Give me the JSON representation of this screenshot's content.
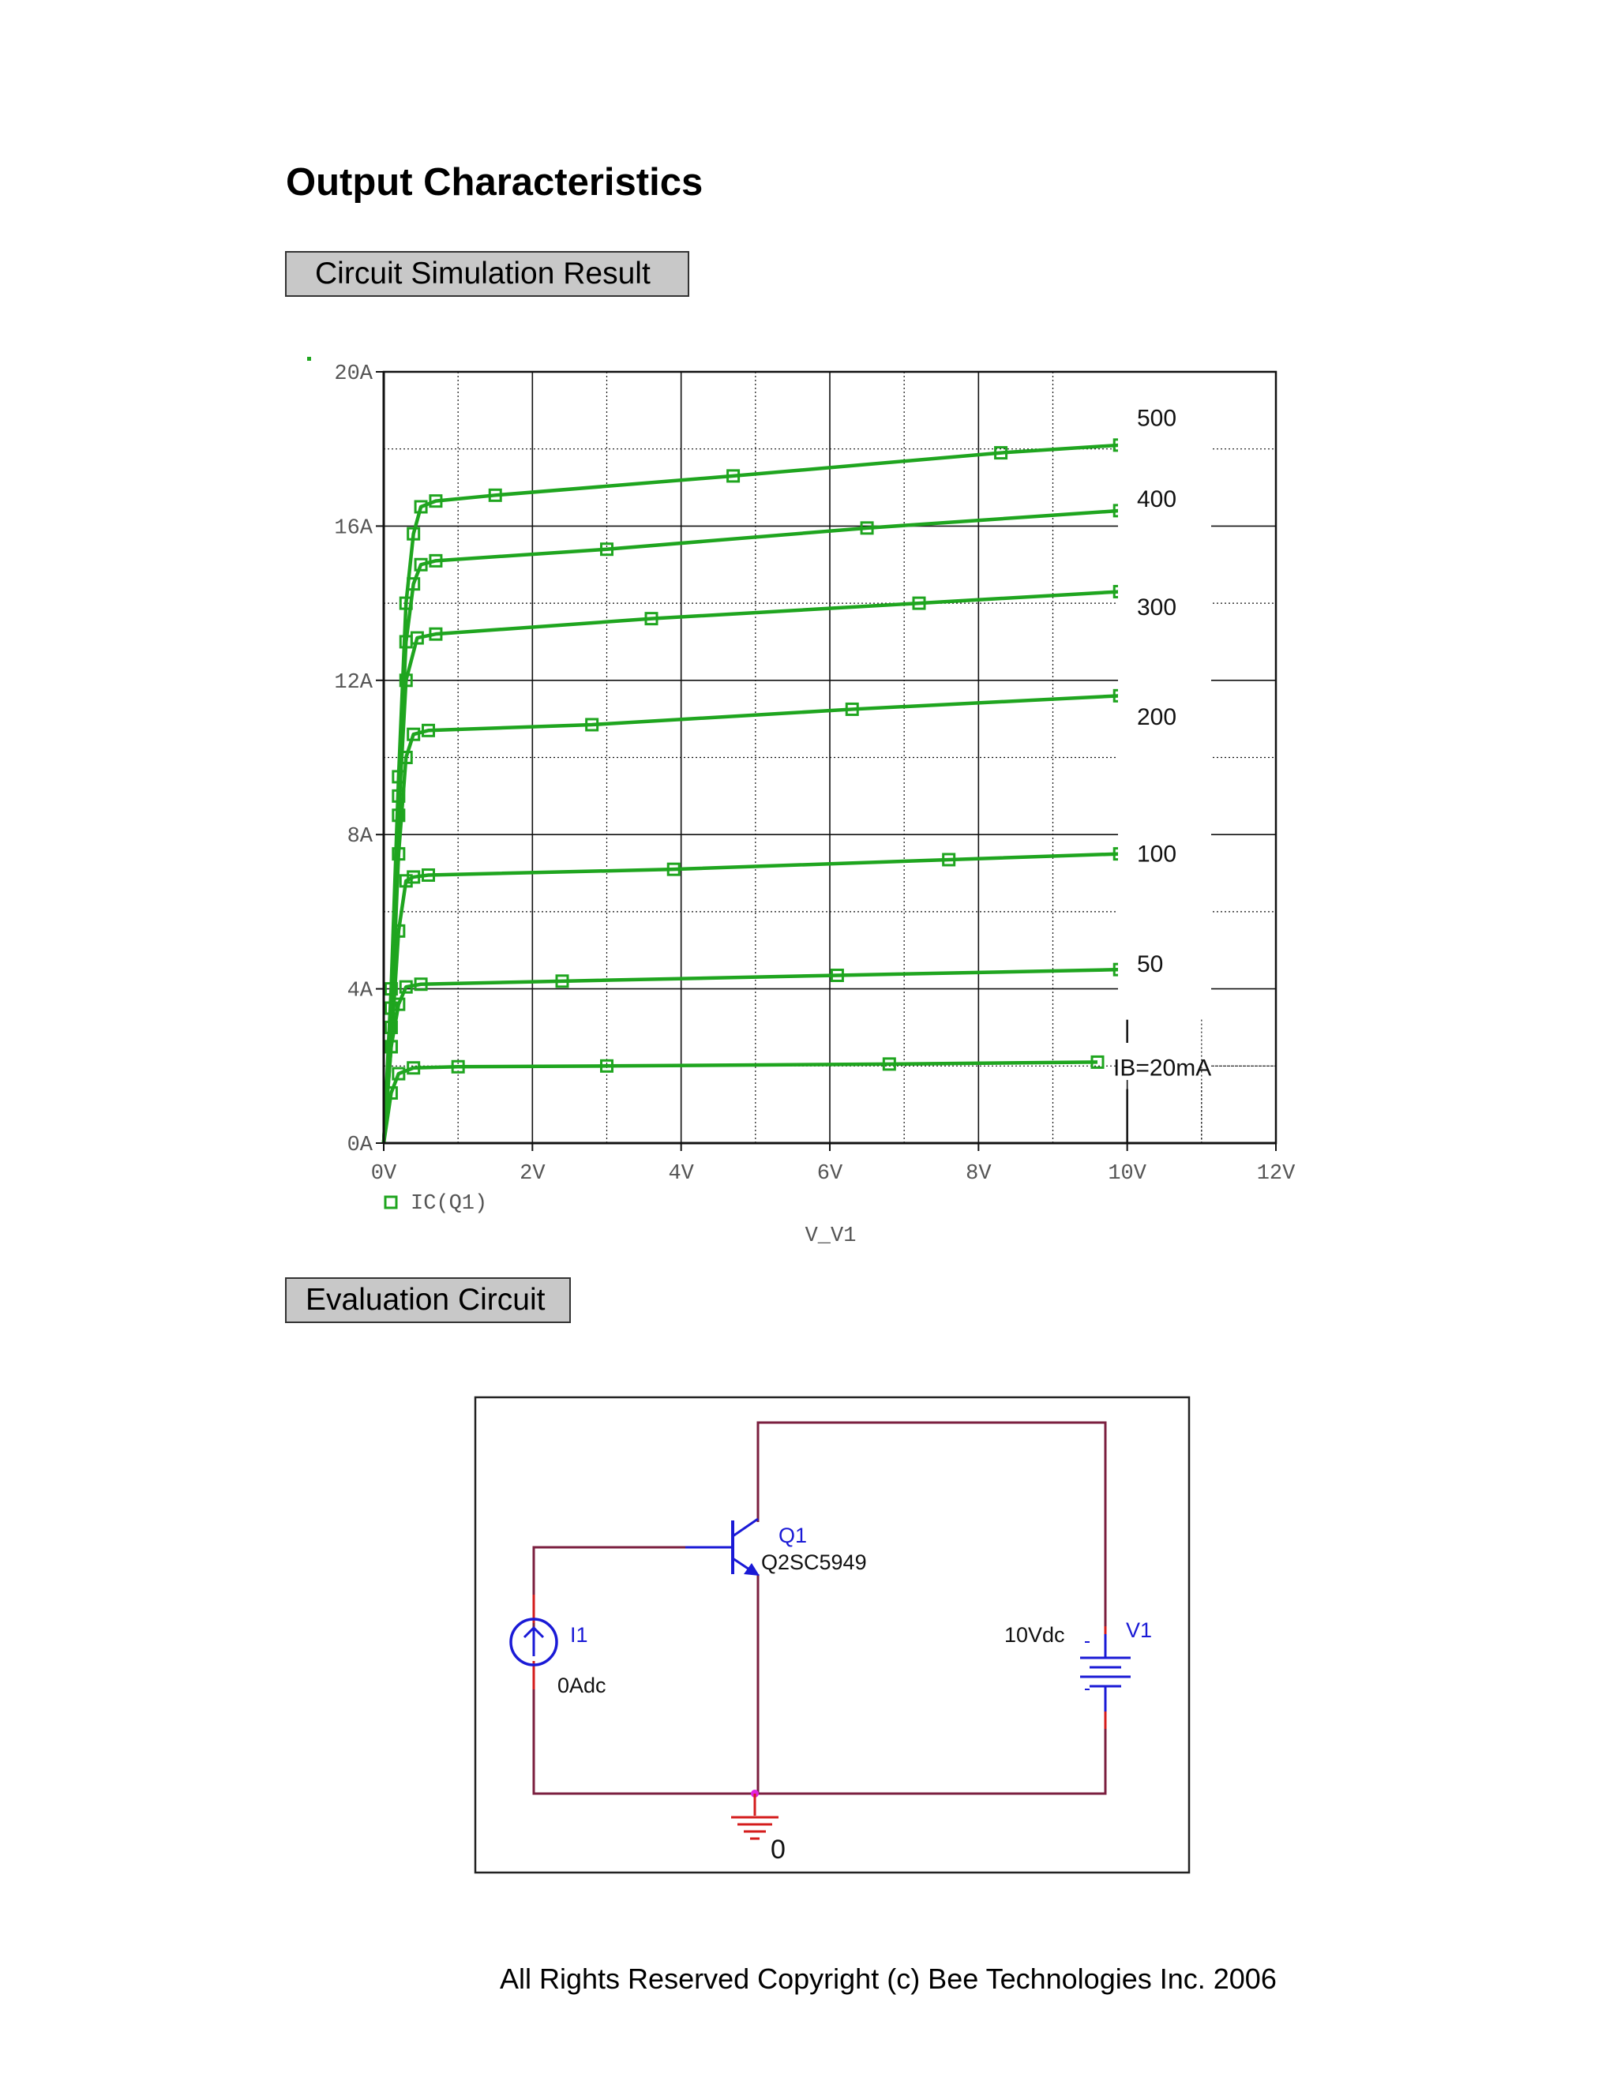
{
  "page": {
    "title": "Output Characteristics",
    "section_simulation": "Circuit Simulation Result",
    "section_evaluation": "Evaluation Circuit",
    "copyright": "All Rights Reserved Copyright (c) Bee Technologies Inc. 2006"
  },
  "chart_data": {
    "type": "line",
    "xlabel": "V_V1",
    "ylabel": "",
    "xlim": [
      0,
      12
    ],
    "ylim": [
      0,
      20
    ],
    "x_ticks": [
      "0V",
      "2V",
      "4V",
      "6V",
      "8V",
      "10V",
      "12V"
    ],
    "y_ticks": [
      "0A",
      "4A",
      "8A",
      "12A",
      "16A",
      "20A"
    ],
    "grid": true,
    "legend": {
      "label": "IC(Q1)",
      "position": "bottom-left"
    },
    "color": "#1fa51f",
    "series": [
      {
        "name": "IB=20mA",
        "x": [
          0,
          0.1,
          0.2,
          0.4,
          1,
          3,
          6.8,
          9.6
        ],
        "values": [
          0,
          1.3,
          1.8,
          1.95,
          1.98,
          2.0,
          2.05,
          2.1
        ]
      },
      {
        "name": "50",
        "x": [
          0,
          0.1,
          0.2,
          0.3,
          0.5,
          2.4,
          6.1,
          9.9
        ],
        "values": [
          0,
          2.5,
          3.6,
          4.05,
          4.12,
          4.2,
          4.35,
          4.5
        ]
      },
      {
        "name": "100",
        "x": [
          0,
          0.1,
          0.2,
          0.3,
          0.4,
          0.6,
          3.9,
          7.6,
          9.9
        ],
        "values": [
          0,
          2.5,
          5.5,
          6.8,
          6.9,
          6.95,
          7.1,
          7.35,
          7.5
        ]
      },
      {
        "name": "200",
        "x": [
          0,
          0.1,
          0.2,
          0.3,
          0.4,
          0.6,
          2.8,
          6.3,
          9.9
        ],
        "values": [
          0,
          3,
          7.5,
          10.0,
          10.6,
          10.7,
          10.85,
          11.25,
          11.6
        ]
      },
      {
        "name": "300",
        "x": [
          0,
          0.1,
          0.2,
          0.3,
          0.45,
          0.7,
          3.6,
          7.2,
          9.9
        ],
        "values": [
          0,
          3.5,
          8.5,
          12.0,
          13.1,
          13.2,
          13.6,
          14.0,
          14.3
        ]
      },
      {
        "name": "400",
        "x": [
          0,
          0.1,
          0.2,
          0.3,
          0.4,
          0.5,
          0.7,
          3.0,
          6.5,
          9.9
        ],
        "values": [
          0,
          3.5,
          9,
          13.0,
          14.5,
          15.0,
          15.1,
          15.4,
          15.95,
          16.4
        ]
      },
      {
        "name": "500",
        "x": [
          0,
          0.1,
          0.2,
          0.3,
          0.4,
          0.5,
          0.7,
          1.5,
          4.7,
          8.3,
          9.9
        ],
        "values": [
          0,
          4,
          9.5,
          14,
          15.8,
          16.5,
          16.65,
          16.8,
          17.3,
          17.9,
          18.1
        ]
      }
    ],
    "curve_labels": [
      "500",
      "400",
      "300",
      "200",
      "100",
      "50",
      "IB=20mA"
    ]
  },
  "circuit": {
    "transistor_ref": "Q1",
    "transistor_part": "Q2SC5949",
    "current_source_ref": "I1",
    "current_source_value": "0Adc",
    "voltage_source_ref": "V1",
    "voltage_source_value": "10Vdc",
    "ground_label": "0",
    "colors": {
      "wire": "#7b1f3f",
      "component": "#1a1ad6",
      "ground": "#d41c1c",
      "node": "#e020e0"
    }
  }
}
